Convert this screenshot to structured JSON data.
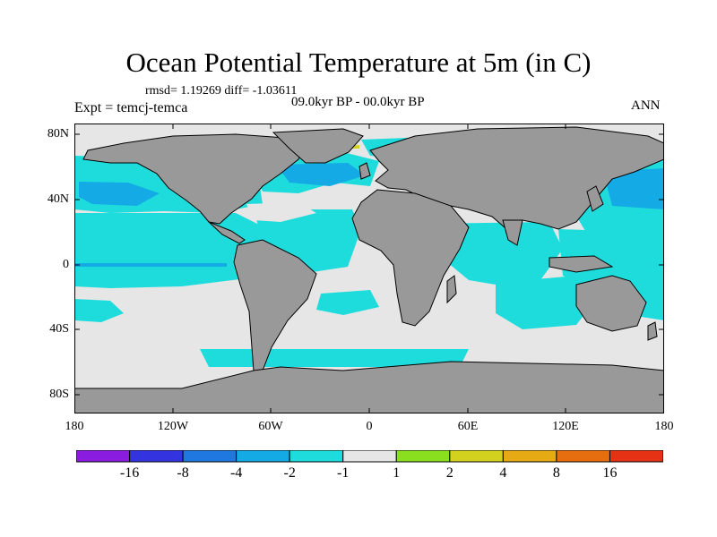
{
  "title": "Ocean Potential Temperature at 5m (in C)",
  "stats": "rmsd= 1.19269 diff= -1.03611",
  "experiment": "Expt = temcj-temca",
  "period": "09.0kyr BP - 00.0kyr BP",
  "season": "ANN",
  "lat_labels": [
    "80N",
    "40N",
    "0",
    "40S",
    "80S"
  ],
  "lon_labels": [
    "180",
    "120W",
    "60W",
    "0",
    "60E",
    "120E",
    "180"
  ],
  "colorbar": {
    "colors": [
      "#8a1ce0",
      "#3333e0",
      "#1f78e0",
      "#14aae6",
      "#1edcdc",
      "#e6e6e6",
      "#8ae01e",
      "#d2d21e",
      "#e6aa14",
      "#e66e0f",
      "#e63214"
    ],
    "labels": [
      "-16",
      "-8",
      "-4",
      "-2",
      "-1",
      "1",
      "2",
      "4",
      "8",
      "16"
    ]
  },
  "colors": {
    "land": "#999999",
    "ocean_neutral": "#e6e6e6",
    "cyan": "#1edcdc",
    "light_blue": "#14aae6",
    "blue": "#1f78e0",
    "green": "#8ae01e",
    "yellow": "#d2d21e"
  }
}
